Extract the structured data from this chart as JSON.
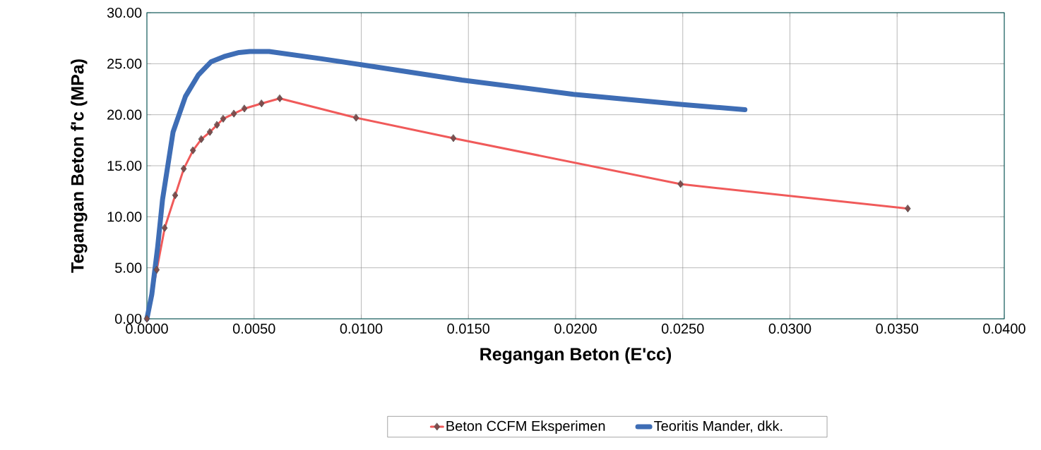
{
  "chart_data": {
    "type": "line",
    "xlabel": "Regangan Beton (E'cc)",
    "ylabel": "Tegangan Beton f'c (MPa)",
    "xlim": [
      0,
      0.04
    ],
    "ylim": [
      0,
      30
    ],
    "xticks": [
      {
        "value": 0,
        "label": "0.0000"
      },
      {
        "value": 0.005,
        "label": "0.0050"
      },
      {
        "value": 0.01,
        "label": "0.0100"
      },
      {
        "value": 0.015,
        "label": "0.0150"
      },
      {
        "value": 0.02,
        "label": "0.0200"
      },
      {
        "value": 0.025,
        "label": "0.0250"
      },
      {
        "value": 0.03,
        "label": "0.0300"
      },
      {
        "value": 0.035,
        "label": "0.0350"
      },
      {
        "value": 0.04,
        "label": "0.0400"
      }
    ],
    "yticks": [
      {
        "value": 0,
        "label": "0.00"
      },
      {
        "value": 5,
        "label": "5.00"
      },
      {
        "value": 10,
        "label": "10.00"
      },
      {
        "value": 15,
        "label": "15.00"
      },
      {
        "value": 20,
        "label": "20.00"
      },
      {
        "value": 25,
        "label": "25.00"
      },
      {
        "value": 30,
        "label": "30.00"
      }
    ],
    "grid": true,
    "legend": "bottom",
    "series": [
      {
        "name": "Beton CCFM Eksperimen",
        "color": "#f05a5a",
        "marker": "diamond",
        "x": [
          0,
          0.00046,
          0.00083,
          0.00132,
          0.00172,
          0.00215,
          0.00254,
          0.00294,
          0.00327,
          0.00356,
          0.00406,
          0.00455,
          0.00535,
          0.0062,
          0.00976,
          0.0143,
          0.0249,
          0.0355
        ],
        "values": [
          0,
          4.8,
          8.9,
          12.1,
          14.7,
          16.5,
          17.6,
          18.3,
          19.0,
          19.6,
          20.1,
          20.6,
          21.1,
          21.6,
          19.7,
          17.7,
          13.2,
          10.8
        ]
      },
      {
        "name": "Teoritis Mander, dkk.",
        "color": "#3e6db5",
        "marker": "none",
        "x": [
          0,
          0.00023,
          0.0005,
          0.00073,
          0.00122,
          0.0018,
          0.0024,
          0.003,
          0.0036,
          0.0043,
          0.0048,
          0.0057,
          0.0081,
          0.01,
          0.0147,
          0.0199,
          0.025,
          0.0279
        ],
        "values": [
          0,
          2.4,
          7.0,
          11.7,
          18.3,
          21.8,
          23.9,
          25.2,
          25.7,
          26.1,
          26.2,
          26.2,
          25.5,
          24.9,
          23.4,
          22.0,
          21.0,
          20.5
        ]
      }
    ]
  }
}
